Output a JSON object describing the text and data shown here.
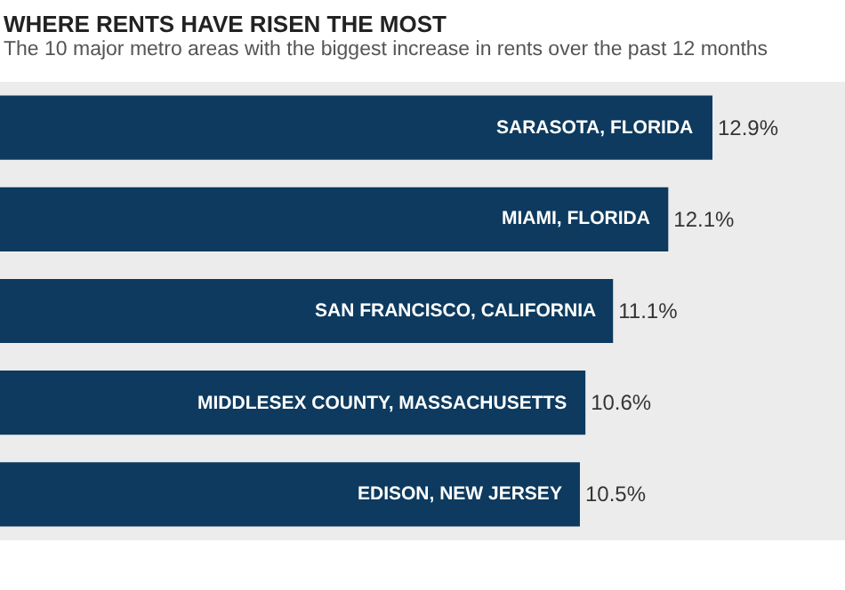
{
  "chart_data": {
    "type": "bar",
    "orientation": "horizontal",
    "title": "WHERE RENTS HAVE RISEN THE MOST",
    "subtitle": "The 10 major metro areas with the biggest increase in rents over the past 12 months",
    "categories": [
      "SARASOTA, FLORIDA",
      "MIAMI, FLORIDA",
      "SAN FRANCISCO, CALIFORNIA",
      "MIDDLESEX COUNTY, MASSACHUSETTS",
      "EDISON, NEW JERSEY"
    ],
    "values": [
      12.9,
      12.1,
      11.1,
      10.6,
      10.5
    ],
    "value_labels": [
      "12.9%",
      "12.1%",
      "11.1%",
      "10.6%",
      "10.5%"
    ],
    "color": "#0d3a5e",
    "xlim": [
      0,
      15.3
    ],
    "grid": false,
    "legend": false,
    "tick_labels": false
  }
}
